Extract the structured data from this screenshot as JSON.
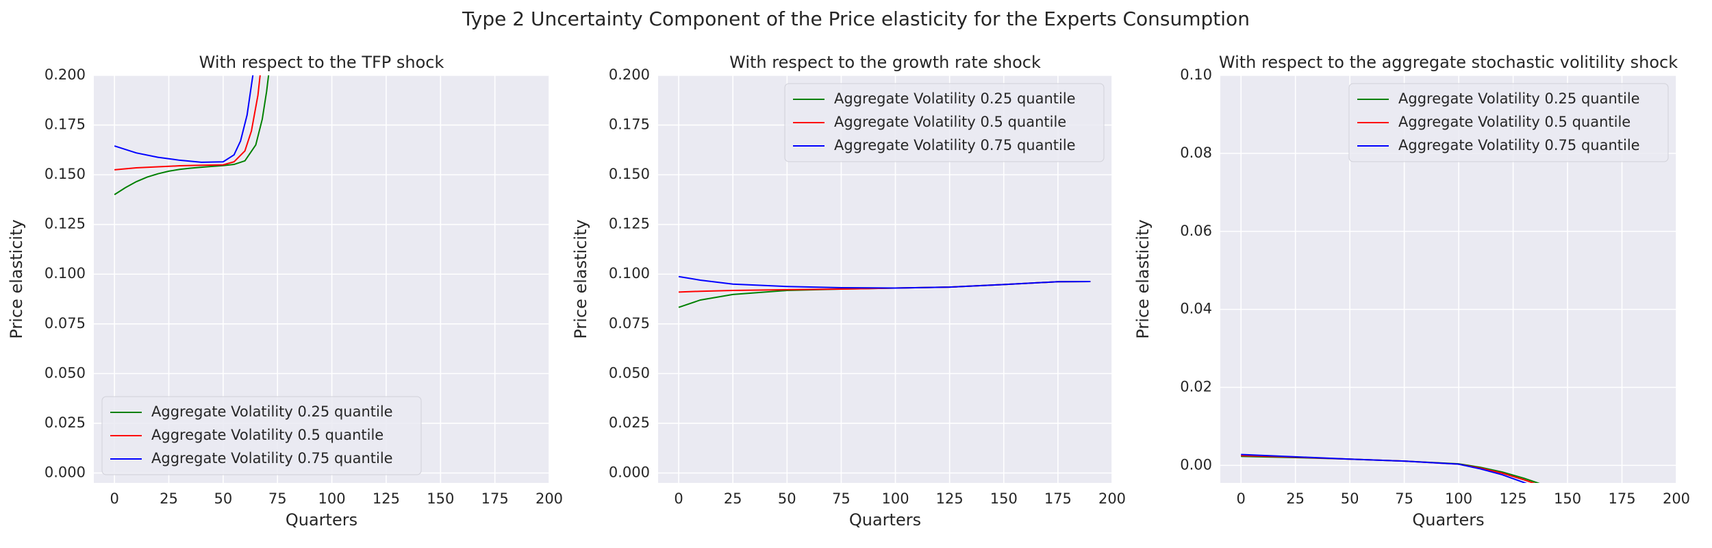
{
  "title": "Type 2 Uncertainty Component of the Price elasticity for the Experts Consumption",
  "chart_data": [
    {
      "type": "line",
      "title": "With respect to the TFP shock",
      "xlabel": "Quarters",
      "ylabel": "Price elasticity",
      "xlim": [
        -9.5,
        200
      ],
      "ylim": [
        -0.005,
        0.2
      ],
      "xticks": [
        0,
        25,
        50,
        75,
        100,
        125,
        150,
        175,
        200
      ],
      "yticks": [
        {
          "value": 0,
          "label": "0.000"
        },
        0.025,
        {
          "value": 0.05,
          "label": "0.050"
        },
        0.075,
        {
          "value": 0.1,
          "label": "0.100"
        },
        0.125,
        {
          "value": 0.15,
          "label": "0.150"
        },
        0.175,
        {
          "value": 0.2,
          "label": "0.200"
        }
      ],
      "grid": true,
      "legend": "lower left",
      "series": [
        {
          "name": "Aggregate Volatility 0.25 quantile",
          "color": "#008000",
          "x": [
            0,
            5,
            10,
            15,
            20,
            25,
            30,
            35,
            40,
            45,
            50,
            55,
            60,
            65,
            68,
            70,
            72
          ],
          "values": [
            0.14,
            0.1435,
            0.1465,
            0.1488,
            0.1505,
            0.1518,
            0.1527,
            0.1533,
            0.1538,
            0.1542,
            0.1546,
            0.1552,
            0.157,
            0.165,
            0.178,
            0.192,
            0.21
          ]
        },
        {
          "name": "Aggregate Volatility 0.5 quantile",
          "color": "#ff0000",
          "x": [
            0,
            10,
            20,
            30,
            40,
            50,
            55,
            60,
            63,
            66,
            68
          ],
          "values": [
            0.1525,
            0.1535,
            0.154,
            0.1545,
            0.1548,
            0.155,
            0.1565,
            0.162,
            0.172,
            0.19,
            0.21
          ]
        },
        {
          "name": "Aggregate Volatility 0.75 quantile",
          "color": "#0000ff",
          "x": [
            0,
            10,
            20,
            30,
            40,
            50,
            55,
            58,
            61,
            63,
            65
          ],
          "values": [
            0.1645,
            0.161,
            0.1588,
            0.1573,
            0.1563,
            0.1565,
            0.16,
            0.167,
            0.18,
            0.195,
            0.21
          ]
        }
      ]
    },
    {
      "type": "line",
      "title": "With respect to the growth rate shock",
      "xlabel": "Quarters",
      "ylabel": "Price elasticity",
      "xlim": [
        -9.5,
        200
      ],
      "ylim": [
        -0.005,
        0.2
      ],
      "xticks": [
        0,
        25,
        50,
        75,
        100,
        125,
        150,
        175,
        200
      ],
      "yticks": [
        {
          "value": 0,
          "label": "0.000"
        },
        0.025,
        {
          "value": 0.05,
          "label": "0.050"
        },
        0.075,
        {
          "value": 0.1,
          "label": "0.100"
        },
        0.125,
        {
          "value": 0.15,
          "label": "0.150"
        },
        0.175,
        {
          "value": 0.2,
          "label": "0.200"
        }
      ],
      "grid": true,
      "legend": "upper right",
      "series": [
        {
          "name": "Aggregate Volatility 0.25 quantile",
          "color": "#008000",
          "x": [
            0,
            10,
            25,
            50,
            75,
            100,
            125,
            150,
            175,
            190
          ],
          "values": [
            0.0833,
            0.087,
            0.0898,
            0.0918,
            0.0925,
            0.093,
            0.0935,
            0.0948,
            0.0962,
            0.0963
          ]
        },
        {
          "name": "Aggregate Volatility 0.5 quantile",
          "color": "#ff0000",
          "x": [
            0,
            10,
            25,
            50,
            75,
            100,
            125,
            150,
            175,
            190
          ],
          "values": [
            0.091,
            0.0914,
            0.0918,
            0.0922,
            0.0925,
            0.093,
            0.0935,
            0.0948,
            0.0962,
            0.0963
          ]
        },
        {
          "name": "Aggregate Volatility 0.75 quantile",
          "color": "#0000ff",
          "x": [
            0,
            10,
            25,
            50,
            75,
            100,
            125,
            150,
            175,
            190
          ],
          "values": [
            0.0988,
            0.097,
            0.095,
            0.0938,
            0.0932,
            0.093,
            0.0935,
            0.0948,
            0.0962,
            0.0963
          ]
        }
      ]
    },
    {
      "type": "line",
      "title": "With respect to the aggregate stochastic volitility shock",
      "xlabel": "Quarters",
      "ylabel": "Price elasticity",
      "xlim": [
        -9.5,
        200
      ],
      "ylim": [
        -0.0045,
        0.1
      ],
      "xticks": [
        0,
        25,
        50,
        75,
        100,
        125,
        150,
        175,
        200
      ],
      "yticks": [
        {
          "value": 0,
          "label": "0.00"
        },
        0.02,
        0.04,
        0.06,
        0.08,
        {
          "value": 0.1,
          "label": "0.10"
        }
      ],
      "grid": true,
      "legend": "upper right",
      "series": [
        {
          "name": "Aggregate Volatility 0.25 quantile",
          "color": "#008000",
          "x": [
            0,
            25,
            50,
            75,
            100,
            110,
            120,
            130,
            140
          ],
          "values": [
            0.0023,
            0.002,
            0.0016,
            0.0011,
            0.0004,
            -0.0005,
            -0.0017,
            -0.0033,
            -0.0052
          ]
        },
        {
          "name": "Aggregate Volatility 0.5 quantile",
          "color": "#ff0000",
          "x": [
            0,
            25,
            50,
            75,
            100,
            110,
            120,
            130,
            140
          ],
          "values": [
            0.0025,
            0.0021,
            0.0016,
            0.0011,
            0.0003,
            -0.0007,
            -0.002,
            -0.0037,
            -0.0056
          ]
        },
        {
          "name": "Aggregate Volatility 0.75 quantile",
          "color": "#0000ff",
          "x": [
            0,
            25,
            50,
            75,
            100,
            110,
            120,
            130,
            140
          ],
          "values": [
            0.0028,
            0.0022,
            0.0016,
            0.0011,
            0.0003,
            -0.0009,
            -0.0024,
            -0.0044,
            -0.0065
          ]
        }
      ]
    }
  ]
}
